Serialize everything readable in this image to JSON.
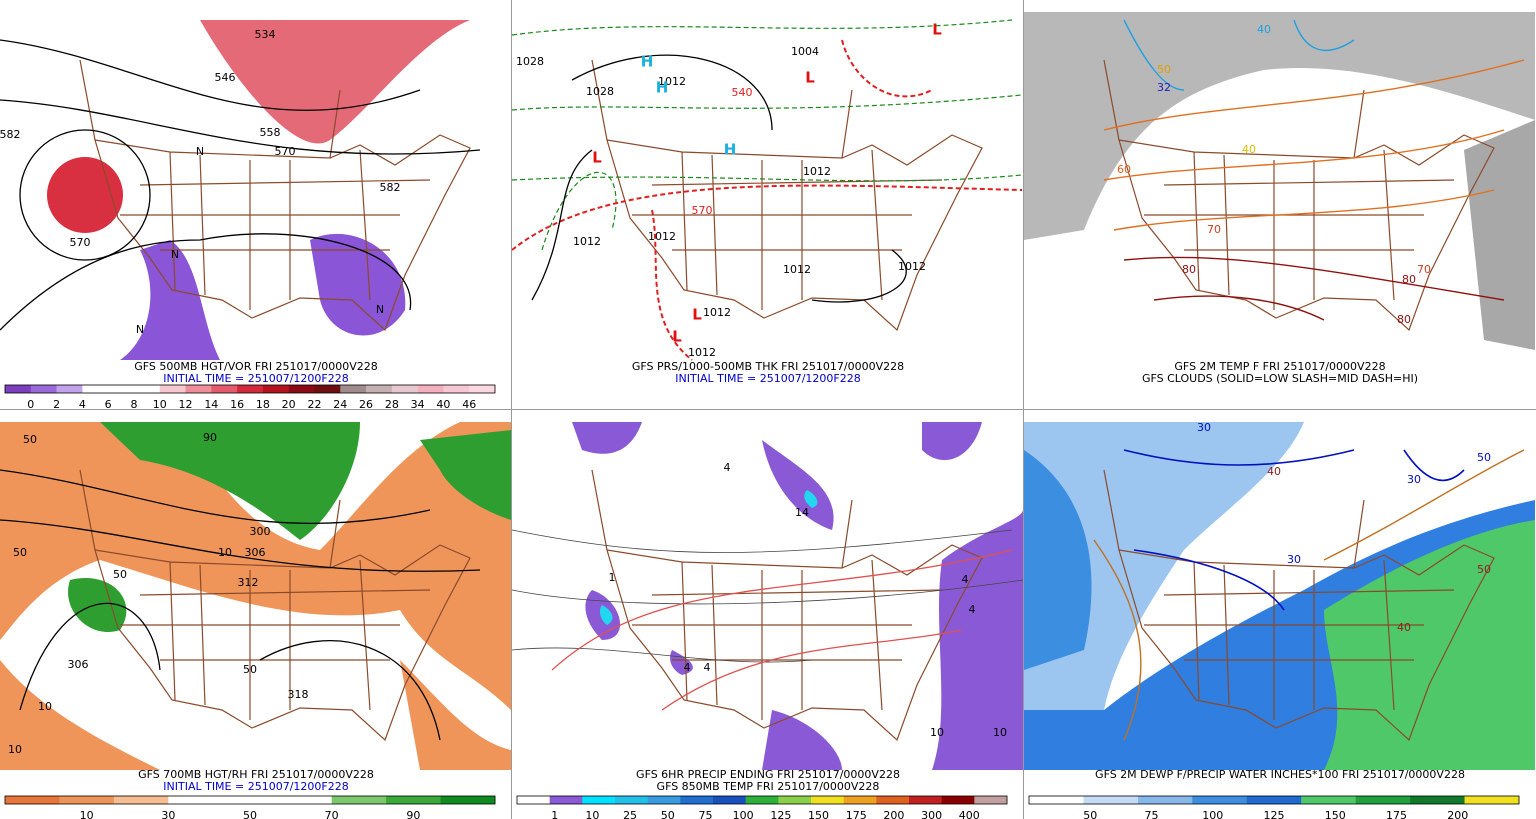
{
  "panels": [
    {
      "caption": [
        "GFS 500MB HGT/VOR FRI 251017/0000V228",
        "INITIAL TIME = 251007/1200F228"
      ],
      "caption_colors": [
        "#000000",
        "#0000cc"
      ],
      "labels": [
        {
          "text": "534",
          "color": "#000"
        },
        {
          "text": "546",
          "color": "#000"
        },
        {
          "text": "558",
          "color": "#000"
        },
        {
          "text": "570",
          "color": "#000"
        },
        {
          "text": "582",
          "color": "#000"
        },
        {
          "text": "582",
          "color": "#000"
        },
        {
          "text": "570",
          "color": "#000"
        },
        {
          "text": "N",
          "color": "#000"
        },
        {
          "text": "N",
          "color": "#000"
        },
        {
          "text": "N",
          "color": "#000"
        },
        {
          "text": "N",
          "color": "#000"
        }
      ],
      "colorbar": {
        "labels": [
          "0",
          "2",
          "4",
          "6",
          "8",
          "10",
          "12",
          "14",
          "16",
          "18",
          "20",
          "22",
          "24",
          "26",
          "28",
          "34",
          "40",
          "46"
        ],
        "colors": [
          "#7b3fbf",
          "#9b6ad9",
          "#c1a3eb",
          "#ffffff",
          "#ffffff",
          "#ffffff",
          "#f7c8cf",
          "#ee8e9b",
          "#e55a6c",
          "#d22a3c",
          "#b5121f",
          "#8c0a13",
          "#6e0f10",
          "#a08c8c",
          "#c4b0b0",
          "#e8c8d0",
          "#f5b0c0",
          "#f7c8d4",
          "#fbd8e0"
        ]
      }
    },
    {
      "caption": [
        "GFS PRS/1000-500MB THK FRI 251017/0000V228",
        "INITIAL TIME = 251007/1200F228"
      ],
      "caption_colors": [
        "#000000",
        "#0000cc"
      ],
      "labels": [
        {
          "text": "1028",
          "color": "#000"
        },
        {
          "text": "1028",
          "color": "#000"
        },
        {
          "text": "1004",
          "color": "#000"
        },
        {
          "text": "1012",
          "color": "#000"
        },
        {
          "text": "1012",
          "color": "#000"
        },
        {
          "text": "1012",
          "color": "#000"
        },
        {
          "text": "1012",
          "color": "#000"
        },
        {
          "text": "1012",
          "color": "#000"
        },
        {
          "text": "1012",
          "color": "#000"
        },
        {
          "text": "1012",
          "color": "#000"
        },
        {
          "text": "1012",
          "color": "#000"
        },
        {
          "text": "540",
          "color": "#e02020"
        },
        {
          "text": "570",
          "color": "#e02020"
        },
        {
          "text": "H",
          "color": "#18b0e0"
        },
        {
          "text": "H",
          "color": "#18b0e0"
        },
        {
          "text": "H",
          "color": "#18b0e0"
        },
        {
          "text": "L",
          "color": "#e01010"
        },
        {
          "text": "L",
          "color": "#e01010"
        },
        {
          "text": "L",
          "color": "#e01010"
        },
        {
          "text": "L",
          "color": "#e01010"
        },
        {
          "text": "L",
          "color": "#e01010"
        }
      ]
    },
    {
      "caption": [
        "GFS 2M TEMP F FRI 251017/0000V228",
        "GFS CLOUDS (SOLID=LOW SLASH=MID DASH=HI)"
      ],
      "caption_colors": [
        "#000000",
        "#000000"
      ],
      "labels": [
        {
          "text": "50",
          "color": "#e0a000"
        },
        {
          "text": "40",
          "color": "#e0c000"
        },
        {
          "text": "70",
          "color": "#d04020"
        },
        {
          "text": "80",
          "color": "#901010"
        },
        {
          "text": "70",
          "color": "#d04020"
        },
        {
          "text": "80",
          "color": "#901010"
        },
        {
          "text": "80",
          "color": "#901010"
        },
        {
          "text": "60",
          "color": "#e06020"
        },
        {
          "text": "40",
          "color": "#20a0e0"
        },
        {
          "text": "32",
          "color": "#2020c0"
        }
      ]
    },
    {
      "caption": [
        "GFS 700MB HGT/RH FRI 251017/0000V228",
        "INITIAL TIME = 251007/1200F228"
      ],
      "caption_colors": [
        "#000000",
        "#0000cc"
      ],
      "labels": [
        {
          "text": "90",
          "color": "#000"
        },
        {
          "text": "50",
          "color": "#000"
        },
        {
          "text": "300",
          "color": "#000"
        },
        {
          "text": "306",
          "color": "#000"
        },
        {
          "text": "312",
          "color": "#000"
        },
        {
          "text": "318",
          "color": "#000"
        },
        {
          "text": "306",
          "color": "#000"
        },
        {
          "text": "50",
          "color": "#000"
        },
        {
          "text": "10",
          "color": "#000"
        },
        {
          "text": "10",
          "color": "#000"
        },
        {
          "text": "10",
          "color": "#000"
        },
        {
          "text": "50",
          "color": "#000"
        },
        {
          "text": "50",
          "color": "#000"
        }
      ],
      "colorbar": {
        "labels": [
          "10",
          "30",
          "50",
          "70",
          "90"
        ],
        "colors": [
          "#e8763a",
          "#f0955a",
          "#f6bd92",
          "#ffffff",
          "#ffffff",
          "#ffffff",
          "#7dc86c",
          "#3aa83a",
          "#0f8a1f"
        ]
      }
    },
    {
      "caption": [
        "GFS 6HR PRECIP ENDING FRI 251017/0000V228",
        "GFS 850MB TEMP FRI 251017/0000V228"
      ],
      "caption_colors": [
        "#000000",
        "#000000"
      ],
      "labels": [
        {
          "text": "4",
          "color": "#000"
        },
        {
          "text": "14",
          "color": "#000"
        },
        {
          "text": "4",
          "color": "#000"
        },
        {
          "text": "4",
          "color": "#000"
        },
        {
          "text": "4",
          "color": "#000"
        },
        {
          "text": "4",
          "color": "#000"
        },
        {
          "text": "10",
          "color": "#000"
        },
        {
          "text": "10",
          "color": "#000"
        },
        {
          "text": "1",
          "color": "#000"
        }
      ],
      "colorbar": {
        "labels": [
          "1",
          "10",
          "25",
          "50",
          "75",
          "100",
          "125",
          "150",
          "175",
          "200",
          "300",
          "400"
        ],
        "colors": [
          "#ffffff",
          "#8a5ad6",
          "#00e0ff",
          "#22c0e8",
          "#3a9ce0",
          "#1e6fd0",
          "#1a4fc0",
          "#2eb03a",
          "#8ad04a",
          "#f0e020",
          "#f0a020",
          "#e06020",
          "#c02020",
          "#8a0000",
          "#c0a0a0"
        ]
      }
    },
    {
      "caption": [
        "GFS 2M DEWP F/PRECIP WATER INCHES*100 FRI 251017/0000V228"
      ],
      "caption_colors": [
        "#000000"
      ],
      "labels": [
        {
          "text": "30",
          "color": "#0010c0"
        },
        {
          "text": "50",
          "color": "#0010c0"
        },
        {
          "text": "30",
          "color": "#0010c0"
        },
        {
          "text": "40",
          "color": "#902020"
        },
        {
          "text": "30",
          "color": "#0010c0"
        },
        {
          "text": "50",
          "color": "#902020"
        },
        {
          "text": "40",
          "color": "#902020"
        }
      ],
      "colorbar": {
        "labels": [
          "50",
          "75",
          "100",
          "125",
          "150",
          "175",
          "200"
        ],
        "colors": [
          "#ffffff",
          "#c6dcf5",
          "#86b8ec",
          "#3c8ee0",
          "#1e6ad0",
          "#4fc86a",
          "#1fa03a",
          "#0f7a2a",
          "#f0e020"
        ]
      }
    }
  ]
}
